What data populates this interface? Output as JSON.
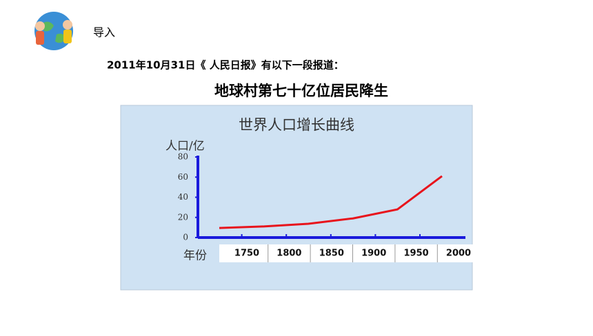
{
  "section": "导入",
  "headline": "2011年10月31日《 人民日报》有以下一段报道：",
  "title": "地球村第七十亿位居民降生",
  "chart_data": {
    "type": "line",
    "title": "世界人口增长曲线",
    "y_label": "人口/亿",
    "x_label": "年份",
    "categories": [
      "1750",
      "1800",
      "1850",
      "1900",
      "1950",
      "2000"
    ],
    "values": [
      9.5,
      11,
      13.7,
      19,
      28,
      61
    ],
    "color": "#e8141c",
    "axis_color": "#1a1adc",
    "ylim": [
      0,
      80
    ],
    "yticks": [
      0,
      20,
      40,
      60,
      80
    ]
  }
}
